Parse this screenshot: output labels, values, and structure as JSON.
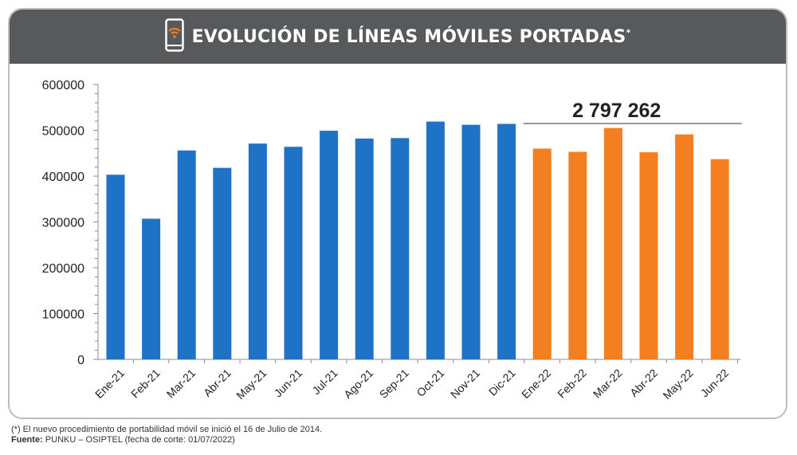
{
  "header": {
    "title": "EVOLUCIÓN DE LÍNEAS MÓVILES PORTADAS",
    "title_mark": "*",
    "icon": "smartphone-wifi-icon"
  },
  "chart_data": {
    "type": "bar",
    "categories": [
      "Ene-21",
      "Feb-21",
      "Mar-21",
      "Abr-21",
      "May-21",
      "Jun-21",
      "Jul-21",
      "Ago-21",
      "Sep-21",
      "Oct-21",
      "Nov-21",
      "Dic-21",
      "Ene-22",
      "Feb-22",
      "Mar-22",
      "Abr-22",
      "May-22",
      "Jun-22"
    ],
    "values": [
      403000,
      307000,
      456000,
      418000,
      471000,
      464000,
      499000,
      482000,
      483000,
      519000,
      512000,
      514000,
      460000,
      453000,
      505000,
      452000,
      491000,
      437000
    ],
    "ylim": [
      0,
      600000
    ],
    "yticks": [
      "0",
      "100000",
      "200000",
      "300000",
      "400000",
      "500000",
      "600000"
    ],
    "colors": {
      "2021": "#1f73c7",
      "2022": "#f47f20"
    },
    "annotation": {
      "text": "2 797 262",
      "from": "Ene-22",
      "to": "Jun-22"
    },
    "grid": false
  },
  "footnote": {
    "note": "(*) El nuevo procedimiento de portabilidad móvil se inició el 16 de Julio de 2014.",
    "source_label": "Fuente:",
    "source_text": "PUNKU – OSIPTEL (fecha de corte: 01/07/2022)"
  }
}
